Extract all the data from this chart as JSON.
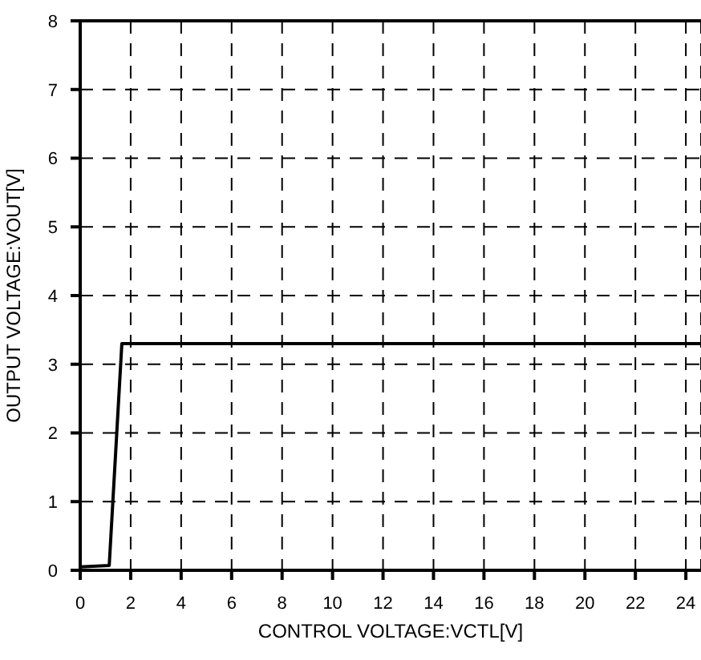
{
  "chart_data": {
    "type": "line",
    "xlabel": "CONTROL VOLTAGE:VCTL[V]",
    "ylabel": "OUTPUT VOLTAGE:VOUT[V]",
    "x": [
      0,
      1.15,
      1.65,
      24.6
    ],
    "series": [
      {
        "color": "#000000",
        "values": [
          0.05,
          0.07,
          3.3,
          3.3
        ]
      }
    ],
    "xlim": [
      0,
      24.6
    ],
    "xticks": [
      0,
      2,
      4,
      6,
      8,
      10,
      12,
      14,
      16,
      18,
      20,
      22,
      24
    ],
    "ylim": [
      0,
      8
    ],
    "yticks": [
      0,
      1,
      2,
      3,
      4,
      5,
      6,
      7,
      8
    ],
    "grid": true,
    "line_style": "solid",
    "marker": "none"
  }
}
